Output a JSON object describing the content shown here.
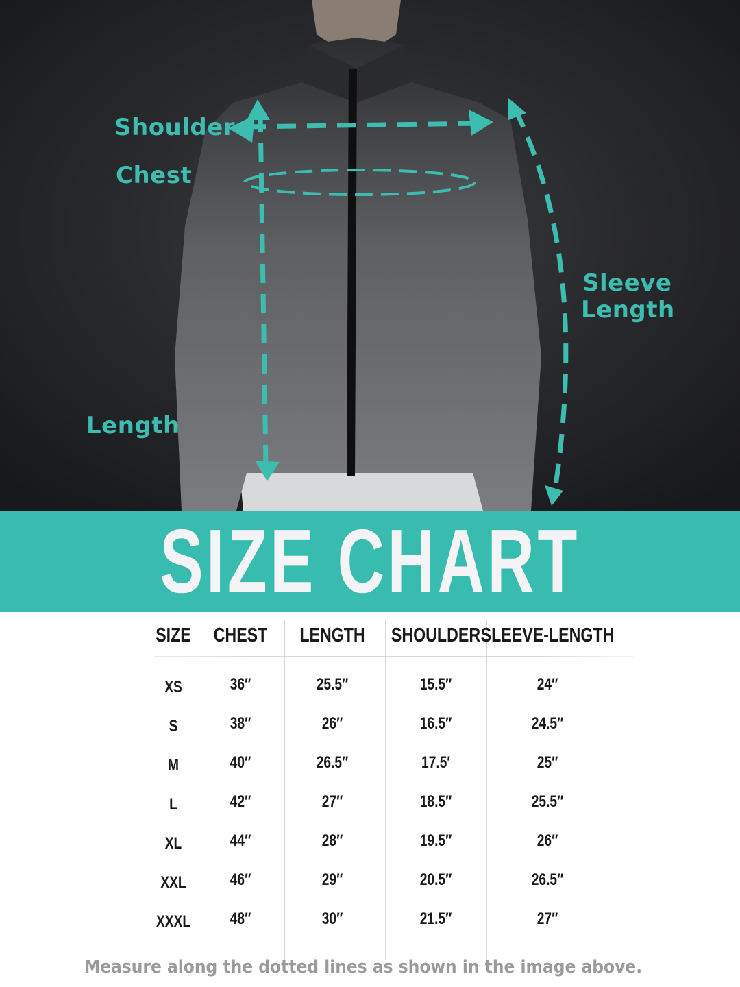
{
  "photo": {
    "labels": {
      "shoulder": "Shoulder",
      "chest": "Chest",
      "sleeve_line1": "Sleeve",
      "sleeve_line2": "Length",
      "length": "Length"
    },
    "accent_color": "#3dbcb0"
  },
  "banner": {
    "title": "SIZE CHART",
    "color": "#38bcb0"
  },
  "table": {
    "headers": [
      "SIZE",
      "CHEST",
      "LENGTH",
      "SHOULDER",
      "SLEEVE-LENGTH"
    ],
    "rows": [
      [
        "XS",
        "36″",
        "25.5″",
        "15.5″",
        "24″"
      ],
      [
        "S",
        "38″",
        "26″",
        "16.5″",
        "24.5″"
      ],
      [
        "M",
        "40″",
        "26.5″",
        "17.5′",
        "25″"
      ],
      [
        "L",
        "42″",
        "27″",
        "18.5″",
        "25.5″"
      ],
      [
        "XL",
        "44″",
        "28″",
        "19.5″",
        "26″"
      ],
      [
        "XXL",
        "46″",
        "29″",
        "20.5″",
        "26.5″"
      ],
      [
        "XXXL",
        "48″",
        "30″",
        "21.5″",
        "27″"
      ]
    ]
  },
  "footnote": "Measure along the dotted lines as shown in the image above."
}
